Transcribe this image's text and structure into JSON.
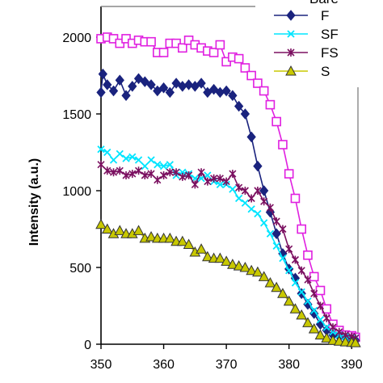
{
  "chart_data": {
    "type": "line",
    "title": "",
    "xlabel": "",
    "ylabel": "Intensity (a.u.)",
    "xlim": [
      350,
      391
    ],
    "ylim": [
      0,
      2200
    ],
    "x_ticks": [
      "350",
      "360",
      "370",
      "380",
      "390"
    ],
    "y_ticks": [
      "0",
      "500",
      "1000",
      "1500",
      "2000"
    ],
    "grid": false,
    "legend_position": "top-right",
    "legend_partial_label": "Bare",
    "series": [
      {
        "name": "Bare",
        "color": "#e020e0",
        "marker": "open-square",
        "points": [
          [
            350,
            1990
          ],
          [
            351,
            2000
          ],
          [
            352,
            1990
          ],
          [
            353,
            1960
          ],
          [
            354,
            1990
          ],
          [
            355,
            1960
          ],
          [
            356,
            1980
          ],
          [
            357,
            1970
          ],
          [
            358,
            1970
          ],
          [
            359,
            1900
          ],
          [
            360,
            1900
          ],
          [
            361,
            1960
          ],
          [
            362,
            1960
          ],
          [
            363,
            1930
          ],
          [
            364,
            1980
          ],
          [
            365,
            1950
          ],
          [
            366,
            1930
          ],
          [
            367,
            1910
          ],
          [
            368,
            1900
          ],
          [
            369,
            1950
          ],
          [
            370,
            1840
          ],
          [
            371,
            1870
          ],
          [
            372,
            1860
          ],
          [
            373,
            1800
          ],
          [
            374,
            1750
          ],
          [
            375,
            1700
          ],
          [
            376,
            1650
          ],
          [
            377,
            1560
          ],
          [
            378,
            1450
          ],
          [
            379,
            1300
          ],
          [
            380,
            1110
          ],
          [
            381,
            950
          ],
          [
            382,
            750
          ],
          [
            383,
            580
          ],
          [
            384,
            440
          ],
          [
            385,
            350
          ],
          [
            386,
            230
          ],
          [
            387,
            130
          ],
          [
            388,
            90
          ],
          [
            389,
            60
          ],
          [
            390,
            55
          ],
          [
            390.6,
            45
          ]
        ]
      },
      {
        "name": "F",
        "color": "#1a237e",
        "marker": "filled-diamond",
        "points": [
          [
            350,
            1640
          ],
          [
            350.3,
            1760
          ],
          [
            351,
            1690
          ],
          [
            352,
            1650
          ],
          [
            353,
            1720
          ],
          [
            354,
            1620
          ],
          [
            355,
            1680
          ],
          [
            356,
            1730
          ],
          [
            357,
            1710
          ],
          [
            358,
            1690
          ],
          [
            359,
            1650
          ],
          [
            360,
            1670
          ],
          [
            361,
            1640
          ],
          [
            362,
            1700
          ],
          [
            363,
            1680
          ],
          [
            364,
            1690
          ],
          [
            365,
            1680
          ],
          [
            366,
            1700
          ],
          [
            367,
            1640
          ],
          [
            368,
            1660
          ],
          [
            369,
            1640
          ],
          [
            370,
            1650
          ],
          [
            371,
            1620
          ],
          [
            372,
            1550
          ],
          [
            373,
            1500
          ],
          [
            374,
            1350
          ],
          [
            375,
            1160
          ],
          [
            376,
            1000
          ],
          [
            377,
            860
          ],
          [
            378,
            720
          ],
          [
            379,
            590
          ],
          [
            380,
            490
          ],
          [
            381,
            430
          ],
          [
            382,
            330
          ],
          [
            383,
            260
          ],
          [
            384,
            200
          ],
          [
            385,
            130
          ],
          [
            386,
            90
          ],
          [
            387,
            60
          ],
          [
            388,
            50
          ],
          [
            389,
            40
          ],
          [
            390,
            30
          ],
          [
            390.6,
            25
          ]
        ]
      },
      {
        "name": "SF",
        "color": "#00e5ff",
        "marker": "x",
        "points": [
          [
            350,
            1270
          ],
          [
            351,
            1250
          ],
          [
            352,
            1200
          ],
          [
            353,
            1240
          ],
          [
            354,
            1210
          ],
          [
            355,
            1220
          ],
          [
            356,
            1200
          ],
          [
            357,
            1160
          ],
          [
            358,
            1200
          ],
          [
            359,
            1170
          ],
          [
            360,
            1160
          ],
          [
            361,
            1170
          ],
          [
            362,
            1100
          ],
          [
            363,
            1120
          ],
          [
            364,
            1110
          ],
          [
            365,
            1080
          ],
          [
            366,
            1080
          ],
          [
            367,
            1100
          ],
          [
            368,
            1060
          ],
          [
            369,
            1040
          ],
          [
            370,
            1040
          ],
          [
            371,
            1010
          ],
          [
            372,
            950
          ],
          [
            373,
            920
          ],
          [
            374,
            880
          ],
          [
            375,
            850
          ],
          [
            376,
            790
          ],
          [
            377,
            720
          ],
          [
            378,
            640
          ],
          [
            379,
            560
          ],
          [
            380,
            480
          ],
          [
            381,
            400
          ],
          [
            382,
            340
          ],
          [
            383,
            280
          ],
          [
            384,
            220
          ],
          [
            385,
            160
          ],
          [
            386,
            110
          ],
          [
            387,
            80
          ],
          [
            388,
            60
          ],
          [
            389,
            50
          ],
          [
            390,
            45
          ],
          [
            390.6,
            40
          ]
        ]
      },
      {
        "name": "FS",
        "color": "#7b1060",
        "marker": "asterisk",
        "points": [
          [
            350,
            1170
          ],
          [
            351,
            1130
          ],
          [
            352,
            1120
          ],
          [
            353,
            1130
          ],
          [
            354,
            1100
          ],
          [
            355,
            1110
          ],
          [
            356,
            1130
          ],
          [
            357,
            1100
          ],
          [
            358,
            1110
          ],
          [
            359,
            1070
          ],
          [
            360,
            1100
          ],
          [
            361,
            1120
          ],
          [
            362,
            1120
          ],
          [
            363,
            1090
          ],
          [
            364,
            1100
          ],
          [
            365,
            1040
          ],
          [
            366,
            1120
          ],
          [
            367,
            1060
          ],
          [
            368,
            1080
          ],
          [
            369,
            1080
          ],
          [
            370,
            1060
          ],
          [
            371,
            1110
          ],
          [
            372,
            1020
          ],
          [
            373,
            1000
          ],
          [
            374,
            950
          ],
          [
            375,
            1000
          ],
          [
            376,
            930
          ],
          [
            377,
            890
          ],
          [
            378,
            800
          ],
          [
            379,
            750
          ],
          [
            380,
            620
          ],
          [
            381,
            550
          ],
          [
            382,
            480
          ],
          [
            383,
            420
          ],
          [
            384,
            330
          ],
          [
            385,
            250
          ],
          [
            386,
            170
          ],
          [
            387,
            110
          ],
          [
            388,
            80
          ],
          [
            389,
            60
          ],
          [
            390,
            50
          ],
          [
            390.6,
            40
          ]
        ]
      },
      {
        "name": "S",
        "color": "#c8c800",
        "marker": "triangle",
        "points": [
          [
            350,
            780
          ],
          [
            351,
            750
          ],
          [
            352,
            720
          ],
          [
            353,
            740
          ],
          [
            354,
            720
          ],
          [
            355,
            720
          ],
          [
            356,
            740
          ],
          [
            357,
            690
          ],
          [
            358,
            700
          ],
          [
            359,
            690
          ],
          [
            360,
            690
          ],
          [
            361,
            690
          ],
          [
            362,
            670
          ],
          [
            363,
            670
          ],
          [
            364,
            650
          ],
          [
            365,
            600
          ],
          [
            366,
            620
          ],
          [
            367,
            570
          ],
          [
            368,
            560
          ],
          [
            369,
            560
          ],
          [
            370,
            540
          ],
          [
            371,
            520
          ],
          [
            372,
            510
          ],
          [
            373,
            500
          ],
          [
            374,
            480
          ],
          [
            375,
            470
          ],
          [
            376,
            440
          ],
          [
            377,
            400
          ],
          [
            378,
            370
          ],
          [
            379,
            330
          ],
          [
            380,
            280
          ],
          [
            381,
            230
          ],
          [
            382,
            190
          ],
          [
            383,
            140
          ],
          [
            384,
            100
          ],
          [
            385,
            60
          ],
          [
            386,
            40
          ],
          [
            387,
            25
          ],
          [
            388,
            20
          ],
          [
            389,
            15
          ],
          [
            390,
            12
          ],
          [
            390.6,
            10
          ]
        ]
      }
    ]
  }
}
